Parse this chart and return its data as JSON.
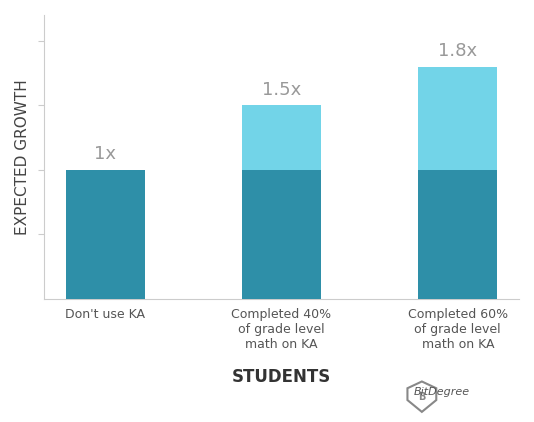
{
  "categories": [
    "Don't use KA",
    "Completed 40%\nof grade level\nmath on KA",
    "Completed 60%\nof grade level\nmath on KA"
  ],
  "base_values": [
    1.0,
    1.0,
    1.0
  ],
  "extra_values": [
    0.0,
    0.5,
    0.8
  ],
  "labels": [
    "1x",
    "1.5x",
    "1.8x"
  ],
  "base_color": "#2e8fa8",
  "extra_color": "#72d4e8",
  "ylabel": "EXPECTED GROWTH",
  "xlabel": "STUDENTS",
  "background_color": "#ffffff",
  "label_color": "#999999",
  "ylim": [
    0,
    2.2
  ],
  "bar_width": 0.45,
  "label_fontsize": 13,
  "axis_label_fontsize": 11,
  "xlabel_fontsize": 12
}
